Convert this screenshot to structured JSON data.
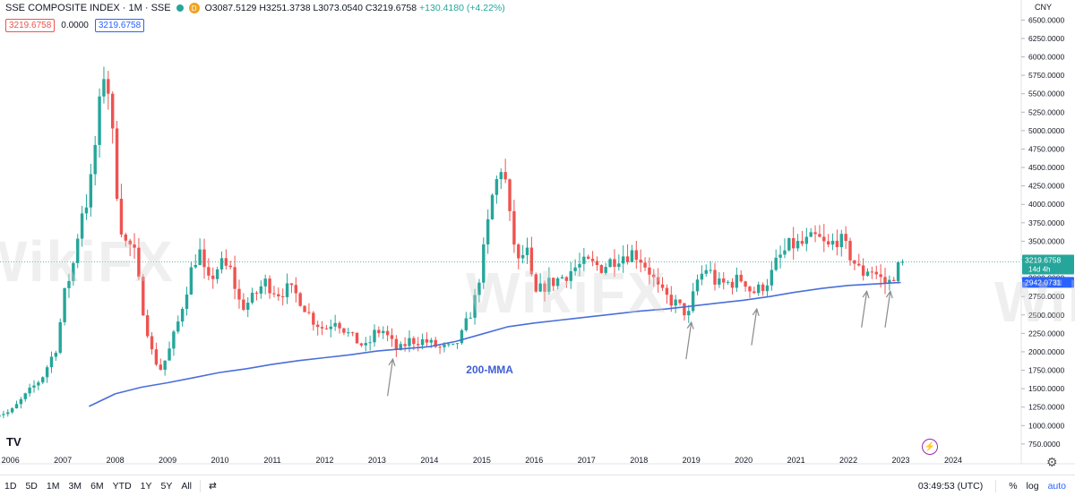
{
  "header": {
    "title": "SSE COMPOSITE INDEX · 1M · SSE",
    "badge": "D",
    "open": "O3087.5129",
    "high": "H3251.3738",
    "low": "L3073.0540",
    "close": "C3219.6758",
    "change": "+130.4180 (+4.22%)",
    "val_red": "3219.6758",
    "val_plain": "0.0000",
    "val_blue": "3219.6758"
  },
  "currency": "CNY",
  "watermark": "WikiFX",
  "colors": {
    "up": "#26a69a",
    "down": "#ef5350",
    "ma": "#4a6fd8",
    "arrow": "#8a8a8a",
    "annotation": "#3f5fd0"
  },
  "chart_data": {
    "type": "candlestick",
    "x_range": [
      2005.8,
      2025.3
    ],
    "y_range": [
      700,
      6650
    ],
    "y_ticks": [
      750,
      1000,
      1250,
      1500,
      1750,
      2000,
      2250,
      2500,
      2750,
      3000,
      3250,
      3500,
      3750,
      4000,
      4250,
      4500,
      4750,
      5000,
      5250,
      5500,
      5750,
      6000,
      6250,
      6500
    ],
    "y_tick_labels": [
      "750.0000",
      "1000.0000",
      "1250.0000",
      "1500.0000",
      "1750.0000",
      "2000.0000",
      "2250.0000",
      "2500.0000",
      "2750.0000",
      "3000.0000",
      "3250.0000",
      "3500.0000",
      "3750.0000",
      "4000.0000",
      "4250.0000",
      "4500.0000",
      "4750.0000",
      "5000.0000",
      "5250.0000",
      "5500.0000",
      "5750.0000",
      "6000.0000",
      "6250.0000",
      "6500.0000"
    ],
    "x_ticks": [
      2006,
      2007,
      2008,
      2009,
      2010,
      2011,
      2012,
      2013,
      2014,
      2015,
      2016,
      2017,
      2018,
      2019,
      2020,
      2021,
      2022,
      2023,
      2024
    ],
    "x_tick_labels": [
      "2006",
      "2007",
      "2008",
      "2009",
      "2010",
      "2011",
      "2012",
      "2013",
      "2014",
      "2015",
      "2016",
      "2017",
      "2018",
      "2019",
      "2020",
      "2021",
      "2022",
      "2023",
      "2024"
    ],
    "close_anchors": [
      [
        2005.7,
        1160
      ],
      [
        2006.0,
        1180
      ],
      [
        2006.3,
        1420
      ],
      [
        2006.6,
        1650
      ],
      [
        2006.9,
        2100
      ],
      [
        2007.0,
        2700
      ],
      [
        2007.2,
        3200
      ],
      [
        2007.35,
        3900
      ],
      [
        2007.5,
        4100
      ],
      [
        2007.65,
        5000
      ],
      [
        2007.8,
        5900
      ],
      [
        2007.9,
        5400
      ],
      [
        2008.0,
        4400
      ],
      [
        2008.15,
        3500
      ],
      [
        2008.35,
        3400
      ],
      [
        2008.5,
        2700
      ],
      [
        2008.7,
        2000
      ],
      [
        2008.85,
        1750
      ],
      [
        2009.0,
        1950
      ],
      [
        2009.2,
        2400
      ],
      [
        2009.45,
        3100
      ],
      [
        2009.6,
        3400
      ],
      [
        2009.75,
        2900
      ],
      [
        2010.0,
        3200
      ],
      [
        2010.2,
        3100
      ],
      [
        2010.4,
        2600
      ],
      [
        2010.6,
        2700
      ],
      [
        2010.85,
        2950
      ],
      [
        2011.1,
        2800
      ],
      [
        2011.3,
        2850
      ],
      [
        2011.5,
        2750
      ],
      [
        2011.75,
        2450
      ],
      [
        2012.0,
        2300
      ],
      [
        2012.2,
        2450
      ],
      [
        2012.5,
        2200
      ],
      [
        2012.8,
        2050
      ],
      [
        2012.95,
        2250
      ],
      [
        2013.1,
        2300
      ],
      [
        2013.4,
        2000
      ],
      [
        2013.6,
        2150
      ],
      [
        2013.9,
        2150
      ],
      [
        2014.2,
        2050
      ],
      [
        2014.45,
        2050
      ],
      [
        2014.6,
        2200
      ],
      [
        2014.85,
        2650
      ],
      [
        2015.0,
        3200
      ],
      [
        2015.2,
        4100
      ],
      [
        2015.4,
        4600
      ],
      [
        2015.55,
        3700
      ],
      [
        2015.7,
        3200
      ],
      [
        2015.85,
        3400
      ],
      [
        2016.0,
        2750
      ],
      [
        2016.2,
        2900
      ],
      [
        2016.5,
        3000
      ],
      [
        2016.8,
        3150
      ],
      [
        2017.0,
        3200
      ],
      [
        2017.3,
        3150
      ],
      [
        2017.6,
        3300
      ],
      [
        2017.9,
        3350
      ],
      [
        2018.0,
        3300
      ],
      [
        2018.2,
        3100
      ],
      [
        2018.4,
        2800
      ],
      [
        2018.7,
        2650
      ],
      [
        2018.95,
        2500
      ],
      [
        2019.1,
        2950
      ],
      [
        2019.3,
        3150
      ],
      [
        2019.5,
        2900
      ],
      [
        2019.8,
        2950
      ],
      [
        2020.0,
        3000
      ],
      [
        2020.15,
        2800
      ],
      [
        2020.3,
        2850
      ],
      [
        2020.5,
        3000
      ],
      [
        2020.65,
        3250
      ],
      [
        2020.9,
        3450
      ],
      [
        2021.1,
        3450
      ],
      [
        2021.4,
        3550
      ],
      [
        2021.6,
        3400
      ],
      [
        2021.8,
        3550
      ],
      [
        2022.0,
        3350
      ],
      [
        2022.25,
        3050
      ],
      [
        2022.4,
        3150
      ],
      [
        2022.6,
        3000
      ],
      [
        2022.75,
        2900
      ],
      [
        2022.9,
        3100
      ],
      [
        2023.05,
        3220
      ]
    ],
    "ma_points": [
      [
        2007.5,
        1260
      ],
      [
        2008.0,
        1430
      ],
      [
        2008.5,
        1520
      ],
      [
        2009.0,
        1580
      ],
      [
        2009.5,
        1650
      ],
      [
        2010.0,
        1720
      ],
      [
        2010.5,
        1770
      ],
      [
        2011.0,
        1830
      ],
      [
        2011.5,
        1880
      ],
      [
        2012.0,
        1920
      ],
      [
        2012.5,
        1960
      ],
      [
        2013.0,
        2010
      ],
      [
        2013.5,
        2040
      ],
      [
        2014.0,
        2070
      ],
      [
        2014.5,
        2140
      ],
      [
        2015.0,
        2240
      ],
      [
        2015.5,
        2340
      ],
      [
        2016.0,
        2390
      ],
      [
        2016.5,
        2430
      ],
      [
        2017.0,
        2470
      ],
      [
        2017.5,
        2510
      ],
      [
        2018.0,
        2550
      ],
      [
        2018.5,
        2580
      ],
      [
        2019.0,
        2620
      ],
      [
        2019.5,
        2660
      ],
      [
        2020.0,
        2700
      ],
      [
        2020.5,
        2750
      ],
      [
        2021.0,
        2810
      ],
      [
        2021.5,
        2860
      ],
      [
        2022.0,
        2900
      ],
      [
        2022.5,
        2920
      ],
      [
        2023.0,
        2942
      ]
    ],
    "last_price": 3219.6758,
    "last_price_label": "3219.6758",
    "last_price_countdown": "14d 4h",
    "ma_value": 2942.0731,
    "ma_value_label": "2942.0731",
    "annotation": "200-MMA",
    "annotation_pos": [
      2014.7,
      1710
    ],
    "arrows": [
      {
        "tip": [
          2013.3,
          1900
        ],
        "tail": [
          2013.2,
          1400
        ]
      },
      {
        "tip": [
          2019.0,
          2400
        ],
        "tail": [
          2018.9,
          1900
        ]
      },
      {
        "tip": [
          2020.25,
          2580
        ],
        "tail": [
          2020.15,
          2090
        ]
      },
      {
        "tip": [
          2022.35,
          2820
        ],
        "tail": [
          2022.25,
          2330
        ]
      },
      {
        "tip": [
          2022.8,
          2820
        ],
        "tail": [
          2022.7,
          2330
        ]
      }
    ]
  },
  "bottom_bar": {
    "timeframes": [
      "1D",
      "5D",
      "1M",
      "3M",
      "6M",
      "YTD",
      "1Y",
      "5Y",
      "All"
    ],
    "compare_icon": "⇄",
    "time": "03:49:53 (UTC)",
    "percent": "%",
    "log": "log",
    "auto": "auto"
  },
  "tv_logo": "TV"
}
